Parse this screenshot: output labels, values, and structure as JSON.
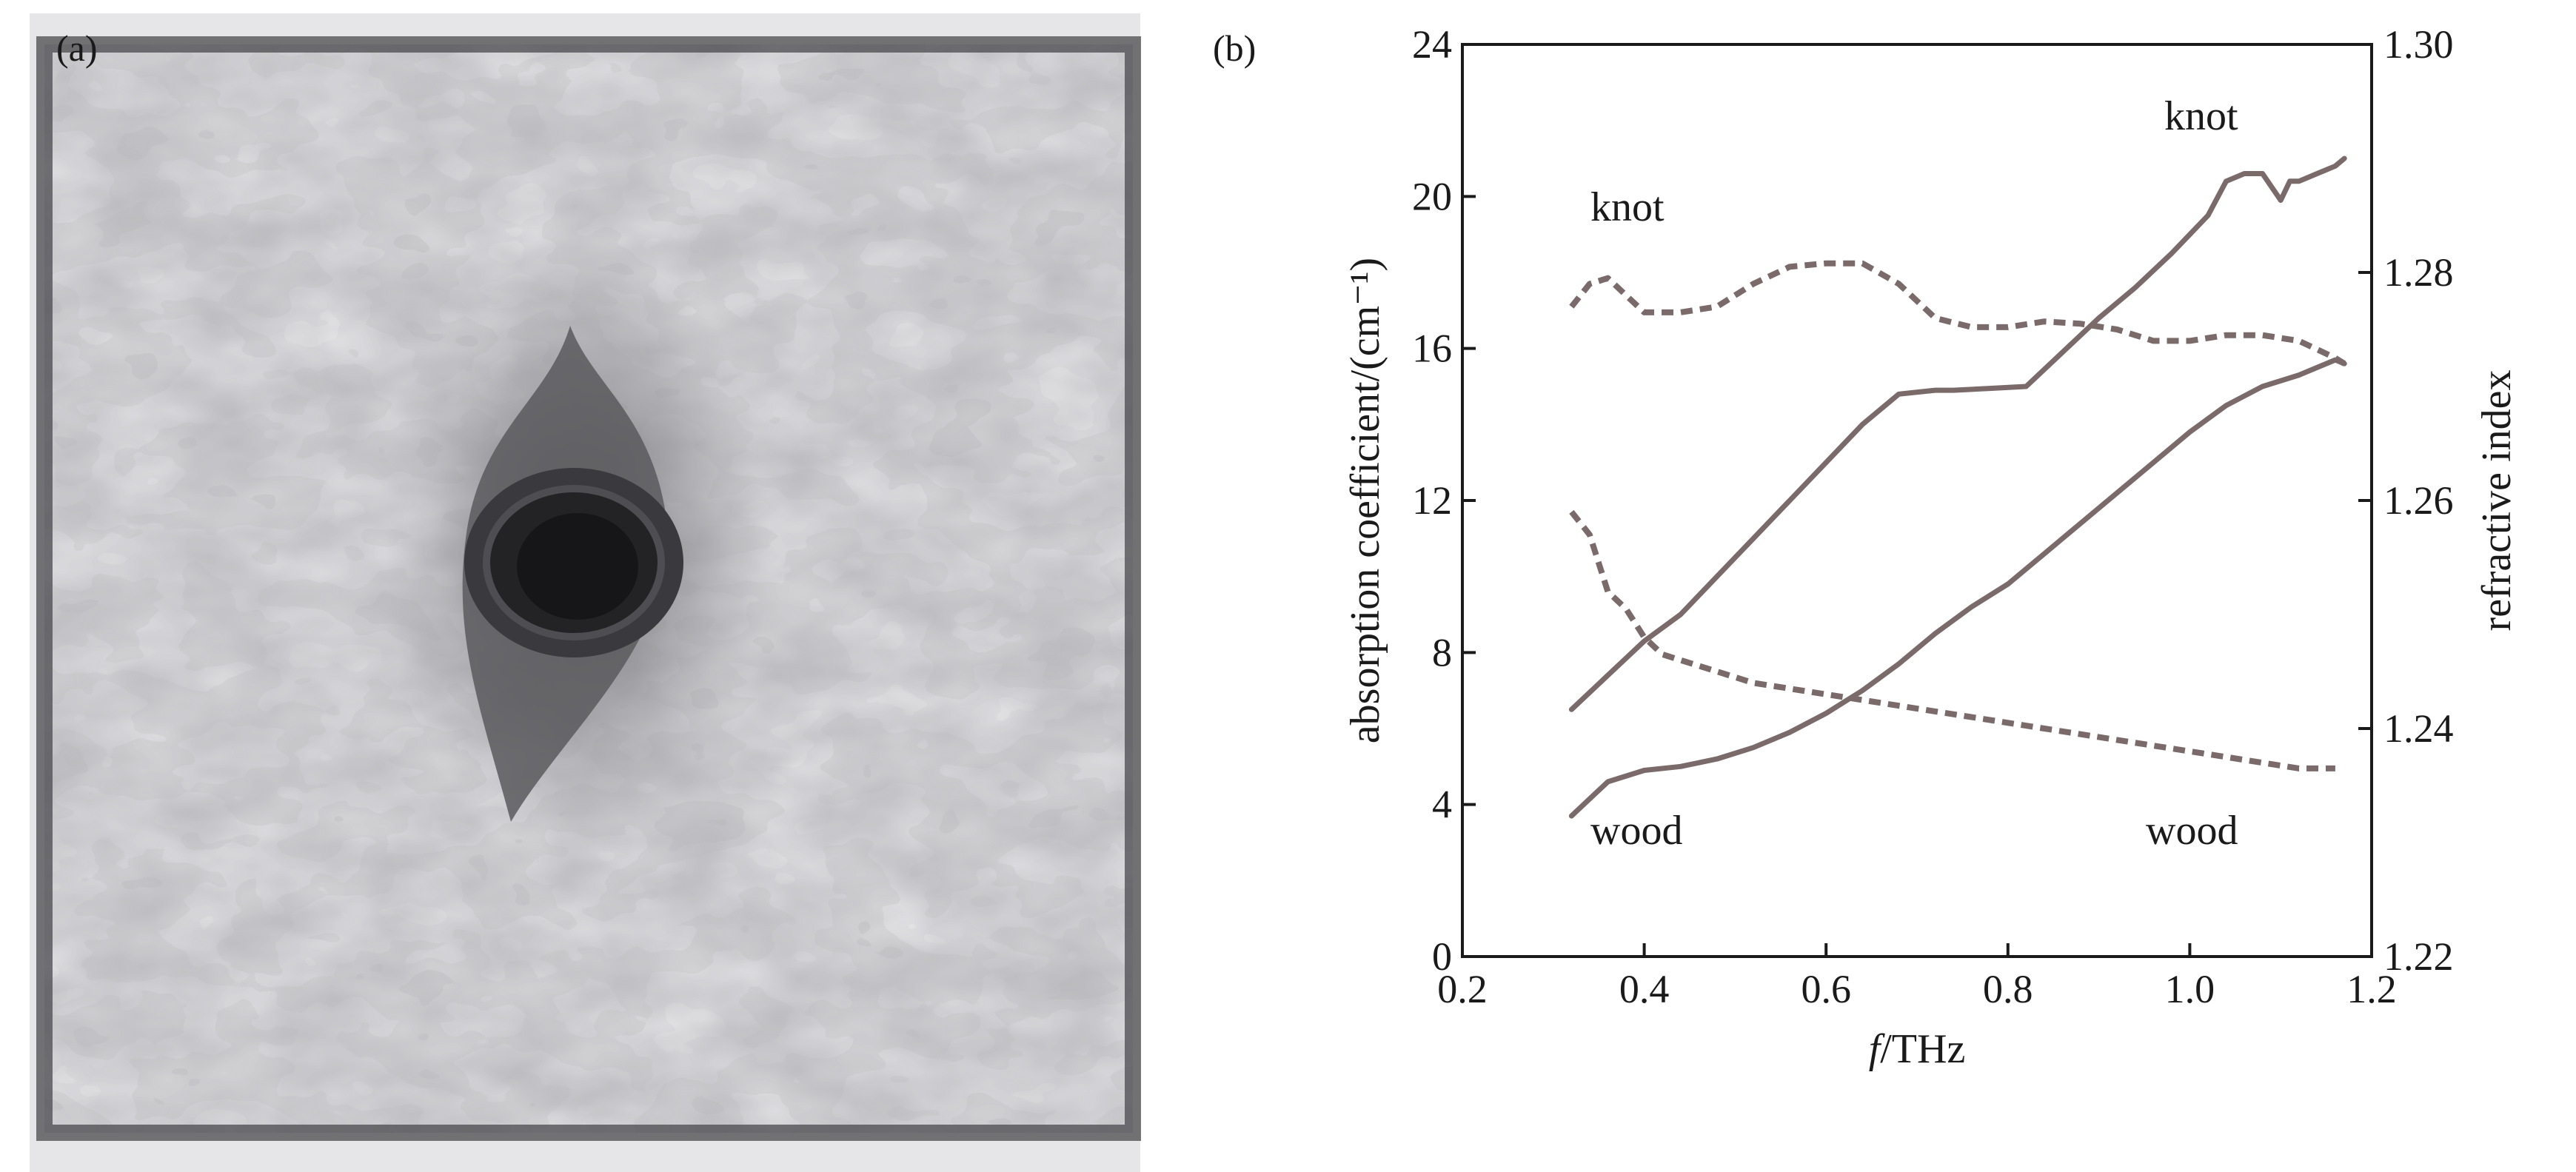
{
  "panel_a": {
    "label": "(a)"
  },
  "panel_b": {
    "label": "(b)"
  },
  "colors": {
    "series": "#7a6a6a",
    "axis": "#1a1a1a"
  },
  "chart_data": {
    "type": "line",
    "title": "",
    "xlabel_italic": "f",
    "xlabel_rest": "/THz",
    "ylabel": "absorption coefficient/(cm⁻¹)",
    "y2label": "refractive index",
    "xlim": [
      0.2,
      1.2
    ],
    "ylim": [
      0,
      24
    ],
    "y2lim": [
      1.22,
      1.3
    ],
    "xticks": [
      "0.2",
      "0.4",
      "0.6",
      "0.8",
      "1.0",
      "1.2"
    ],
    "yticks": [
      "0",
      "4",
      "8",
      "12",
      "16",
      "20",
      "24"
    ],
    "y2ticks": [
      "1.22",
      "1.24",
      "1.26",
      "1.28",
      "1.30"
    ],
    "annotations": {
      "knot_left": "knot",
      "knot_right": "knot",
      "wood_left": "wood",
      "wood_right": "wood"
    },
    "series": [
      {
        "axis": "left",
        "style": "solid",
        "x": [
          0.32,
          0.36,
          0.4,
          0.44,
          0.48,
          0.52,
          0.56,
          0.6,
          0.64,
          0.68,
          0.72,
          0.74,
          0.78,
          0.82,
          0.86,
          0.9,
          0.94,
          0.98,
          1.02,
          1.04,
          1.06,
          1.08,
          1.1,
          1.11,
          1.12,
          1.14,
          1.16,
          1.17
        ],
        "y": [
          6.5,
          7.4,
          8.3,
          9.0,
          10.0,
          11.0,
          12.0,
          13.0,
          14.0,
          14.8,
          14.9,
          14.9,
          14.95,
          15.0,
          15.9,
          16.8,
          17.6,
          18.5,
          19.5,
          20.4,
          20.6,
          20.6,
          19.9,
          20.4,
          20.4,
          20.6,
          20.8,
          21.0
        ]
      },
      {
        "axis": "left",
        "style": "solid",
        "x": [
          0.32,
          0.36,
          0.4,
          0.44,
          0.48,
          0.52,
          0.56,
          0.6,
          0.64,
          0.68,
          0.72,
          0.76,
          0.8,
          0.84,
          0.88,
          0.92,
          0.96,
          1.0,
          1.04,
          1.08,
          1.12,
          1.16,
          1.17
        ],
        "y": [
          3.7,
          4.6,
          4.9,
          5.0,
          5.2,
          5.5,
          5.9,
          6.4,
          7.0,
          7.7,
          8.5,
          9.2,
          9.8,
          10.6,
          11.4,
          12.2,
          13.0,
          13.8,
          14.5,
          15.0,
          15.3,
          15.7,
          15.6
        ]
      },
      {
        "axis": "right",
        "style": "dashed",
        "x": [
          0.32,
          0.34,
          0.36,
          0.38,
          0.4,
          0.44,
          0.48,
          0.52,
          0.56,
          0.6,
          0.64,
          0.68,
          0.72,
          0.76,
          0.8,
          0.84,
          0.88,
          0.92,
          0.96,
          1.0,
          1.04,
          1.08,
          1.12,
          1.16,
          1.17
        ],
        "y": [
          1.277,
          1.279,
          1.2795,
          1.278,
          1.2765,
          1.2765,
          1.277,
          1.279,
          1.2805,
          1.2808,
          1.2808,
          1.279,
          1.276,
          1.2752,
          1.2752,
          1.2757,
          1.2755,
          1.275,
          1.274,
          1.274,
          1.2745,
          1.2745,
          1.274,
          1.2725,
          1.272
        ]
      },
      {
        "axis": "right",
        "style": "dashed",
        "x": [
          0.32,
          0.34,
          0.36,
          0.38,
          0.4,
          0.42,
          0.44,
          0.48,
          0.52,
          0.56,
          0.6,
          0.64,
          0.68,
          0.72,
          0.76,
          0.8,
          0.84,
          0.88,
          0.92,
          0.96,
          1.0,
          1.04,
          1.08,
          1.12,
          1.16
        ],
        "y": [
          1.259,
          1.257,
          1.252,
          1.2505,
          1.248,
          1.2465,
          1.246,
          1.245,
          1.244,
          1.2435,
          1.243,
          1.2425,
          1.242,
          1.2415,
          1.241,
          1.2405,
          1.24,
          1.2395,
          1.239,
          1.2385,
          1.238,
          1.2375,
          1.237,
          1.2365,
          1.2365
        ]
      }
    ]
  }
}
